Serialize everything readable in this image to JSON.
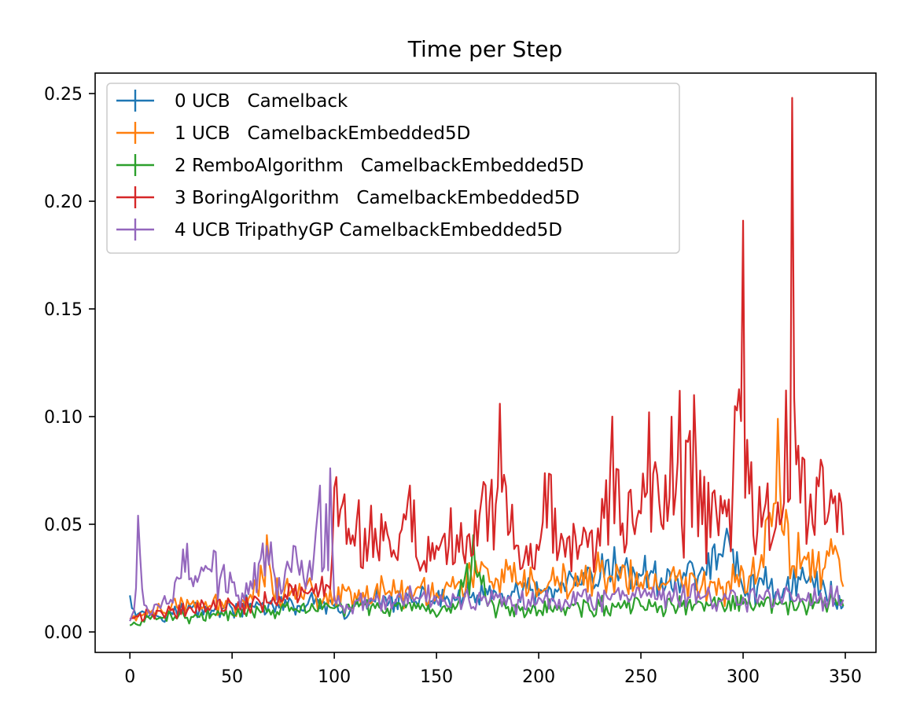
{
  "chart_data": {
    "type": "line",
    "title": "Time per Step",
    "xlabel": "",
    "ylabel": "",
    "xlim": [
      -17,
      365
    ],
    "ylim": [
      -0.0095,
      0.2595
    ],
    "x_ticks": [
      0,
      50,
      100,
      150,
      200,
      250,
      300,
      350
    ],
    "y_ticks": [
      0.0,
      0.05,
      0.1,
      0.15,
      0.2,
      0.25
    ],
    "x_tick_labels": [
      "0",
      "50",
      "100",
      "150",
      "200",
      "250",
      "300",
      "350"
    ],
    "y_tick_labels": [
      "0.00",
      "0.05",
      "0.10",
      "0.15",
      "0.20",
      "0.25"
    ],
    "grid": false,
    "legend_position": "upper-left",
    "series": [
      {
        "name": "0 UCB   Camelback",
        "color": "#1f77b4",
        "x_range": [
          0,
          349
        ],
        "points": [
          [
            0,
            0.017
          ],
          [
            5,
            0.009
          ],
          [
            10,
            0.008
          ],
          [
            20,
            0.009
          ],
          [
            30,
            0.011
          ],
          [
            40,
            0.01
          ],
          [
            50,
            0.011
          ],
          [
            60,
            0.012
          ],
          [
            70,
            0.012
          ],
          [
            80,
            0.012
          ],
          [
            90,
            0.013
          ],
          [
            100,
            0.012
          ],
          [
            105,
            0.006
          ],
          [
            110,
            0.013
          ],
          [
            120,
            0.014
          ],
          [
            130,
            0.015
          ],
          [
            140,
            0.014
          ],
          [
            150,
            0.016
          ],
          [
            160,
            0.015
          ],
          [
            170,
            0.017
          ],
          [
            180,
            0.016
          ],
          [
            190,
            0.018
          ],
          [
            200,
            0.017
          ],
          [
            210,
            0.02
          ],
          [
            220,
            0.022
          ],
          [
            230,
            0.025
          ],
          [
            240,
            0.03
          ],
          [
            250,
            0.026
          ],
          [
            260,
            0.025
          ],
          [
            270,
            0.024
          ],
          [
            280,
            0.03
          ],
          [
            290,
            0.035
          ],
          [
            292,
            0.048
          ],
          [
            300,
            0.02
          ],
          [
            310,
            0.022
          ],
          [
            320,
            0.02
          ],
          [
            330,
            0.025
          ],
          [
            340,
            0.02
          ],
          [
            349,
            0.012
          ]
        ]
      },
      {
        "name": "1 UCB   CamelbackEmbedded5D",
        "color": "#ff7f0e",
        "x_range": [
          0,
          349
        ],
        "points": [
          [
            0,
            0.006
          ],
          [
            10,
            0.009
          ],
          [
            20,
            0.011
          ],
          [
            30,
            0.013
          ],
          [
            40,
            0.012
          ],
          [
            50,
            0.013
          ],
          [
            60,
            0.015
          ],
          [
            67,
            0.045
          ],
          [
            70,
            0.018
          ],
          [
            80,
            0.02
          ],
          [
            90,
            0.018
          ],
          [
            100,
            0.017
          ],
          [
            110,
            0.018
          ],
          [
            120,
            0.019
          ],
          [
            130,
            0.018
          ],
          [
            140,
            0.02
          ],
          [
            150,
            0.018
          ],
          [
            160,
            0.022
          ],
          [
            170,
            0.028
          ],
          [
            180,
            0.024
          ],
          [
            190,
            0.022
          ],
          [
            200,
            0.02
          ],
          [
            210,
            0.022
          ],
          [
            220,
            0.023
          ],
          [
            230,
            0.028
          ],
          [
            240,
            0.025
          ],
          [
            250,
            0.023
          ],
          [
            260,
            0.022
          ],
          [
            270,
            0.023
          ],
          [
            280,
            0.022
          ],
          [
            290,
            0.021
          ],
          [
            300,
            0.028
          ],
          [
            310,
            0.03
          ],
          [
            317,
            0.099
          ],
          [
            320,
            0.045
          ],
          [
            330,
            0.035
          ],
          [
            340,
            0.03
          ],
          [
            345,
            0.04
          ],
          [
            349,
            0.021
          ]
        ]
      },
      {
        "name": "2 RemboAlgorithm   CamelbackEmbedded5D",
        "color": "#2ca02c",
        "x_range": [
          0,
          349
        ],
        "points": [
          [
            0,
            0.003
          ],
          [
            10,
            0.006
          ],
          [
            20,
            0.008
          ],
          [
            30,
            0.007
          ],
          [
            40,
            0.008
          ],
          [
            50,
            0.008
          ],
          [
            60,
            0.009
          ],
          [
            70,
            0.01
          ],
          [
            80,
            0.01
          ],
          [
            90,
            0.011
          ],
          [
            100,
            0.011
          ],
          [
            110,
            0.012
          ],
          [
            120,
            0.011
          ],
          [
            130,
            0.012
          ],
          [
            140,
            0.011
          ],
          [
            150,
            0.007
          ],
          [
            160,
            0.012
          ],
          [
            168,
            0.045
          ],
          [
            175,
            0.012
          ],
          [
            180,
            0.011
          ],
          [
            190,
            0.012
          ],
          [
            200,
            0.01
          ],
          [
            210,
            0.012
          ],
          [
            220,
            0.011
          ],
          [
            230,
            0.012
          ],
          [
            240,
            0.011
          ],
          [
            250,
            0.012
          ],
          [
            260,
            0.012
          ],
          [
            270,
            0.012
          ],
          [
            280,
            0.013
          ],
          [
            290,
            0.012
          ],
          [
            300,
            0.013
          ],
          [
            310,
            0.012
          ],
          [
            320,
            0.013
          ],
          [
            330,
            0.012
          ],
          [
            340,
            0.013
          ],
          [
            349,
            0.012
          ]
        ]
      },
      {
        "name": "3 BoringAlgorithm   CamelbackEmbedded5D",
        "color": "#d62728",
        "x_range": [
          0,
          349
        ],
        "points": [
          [
            0,
            0.006
          ],
          [
            10,
            0.008
          ],
          [
            20,
            0.01
          ],
          [
            30,
            0.011
          ],
          [
            40,
            0.012
          ],
          [
            50,
            0.013
          ],
          [
            60,
            0.014
          ],
          [
            70,
            0.016
          ],
          [
            80,
            0.017
          ],
          [
            90,
            0.018
          ],
          [
            98,
            0.02
          ],
          [
            100,
            0.067
          ],
          [
            110,
            0.04
          ],
          [
            120,
            0.048
          ],
          [
            130,
            0.035
          ],
          [
            137,
            0.068
          ],
          [
            140,
            0.035
          ],
          [
            150,
            0.04
          ],
          [
            160,
            0.045
          ],
          [
            170,
            0.04
          ],
          [
            181,
            0.106
          ],
          [
            185,
            0.045
          ],
          [
            190,
            0.04
          ],
          [
            200,
            0.038
          ],
          [
            206,
            0.073
          ],
          [
            210,
            0.038
          ],
          [
            220,
            0.04
          ],
          [
            230,
            0.04
          ],
          [
            236,
            0.1
          ],
          [
            240,
            0.045
          ],
          [
            250,
            0.055
          ],
          [
            254,
            0.102
          ],
          [
            260,
            0.05
          ],
          [
            269,
            0.112
          ],
          [
            270,
            0.05
          ],
          [
            276,
            0.11
          ],
          [
            280,
            0.05
          ],
          [
            290,
            0.055
          ],
          [
            295,
            0.068
          ],
          [
            300,
            0.191
          ],
          [
            305,
            0.045
          ],
          [
            310,
            0.055
          ],
          [
            315,
            0.045
          ],
          [
            320,
            0.06
          ],
          [
            324,
            0.248
          ],
          [
            328,
            0.06
          ],
          [
            330,
            0.08
          ],
          [
            335,
            0.045
          ],
          [
            338,
            0.08
          ],
          [
            340,
            0.05
          ],
          [
            345,
            0.063
          ],
          [
            349,
            0.045
          ]
        ]
      },
      {
        "name": "4 UCB TripathyGP CamelbackEmbedded5D",
        "color": "#9467bd",
        "x_range": [
          0,
          349
        ],
        "points": [
          [
            0,
            0.005
          ],
          [
            2,
            0.01
          ],
          [
            4,
            0.054
          ],
          [
            6,
            0.02
          ],
          [
            10,
            0.008
          ],
          [
            20,
            0.015
          ],
          [
            25,
            0.025
          ],
          [
            28,
            0.041
          ],
          [
            30,
            0.025
          ],
          [
            35,
            0.03
          ],
          [
            40,
            0.028
          ],
          [
            50,
            0.023
          ],
          [
            55,
            0.018
          ],
          [
            60,
            0.02
          ],
          [
            67,
            0.04
          ],
          [
            70,
            0.03
          ],
          [
            75,
            0.02
          ],
          [
            80,
            0.04
          ],
          [
            85,
            0.025
          ],
          [
            90,
            0.035
          ],
          [
            93,
            0.068
          ],
          [
            95,
            0.03
          ],
          [
            98,
            0.076
          ],
          [
            100,
            0.015
          ],
          [
            110,
            0.014
          ],
          [
            120,
            0.015
          ],
          [
            130,
            0.014
          ],
          [
            140,
            0.016
          ],
          [
            150,
            0.015
          ],
          [
            160,
            0.016
          ],
          [
            170,
            0.015
          ],
          [
            180,
            0.016
          ],
          [
            190,
            0.015
          ],
          [
            200,
            0.016
          ],
          [
            210,
            0.015
          ],
          [
            220,
            0.017
          ],
          [
            230,
            0.016
          ],
          [
            240,
            0.015
          ],
          [
            250,
            0.016
          ],
          [
            260,
            0.015
          ],
          [
            270,
            0.017
          ],
          [
            280,
            0.016
          ],
          [
            290,
            0.015
          ],
          [
            300,
            0.016
          ],
          [
            310,
            0.015
          ],
          [
            320,
            0.017
          ],
          [
            330,
            0.015
          ],
          [
            340,
            0.016
          ],
          [
            349,
            0.015
          ]
        ]
      }
    ]
  }
}
